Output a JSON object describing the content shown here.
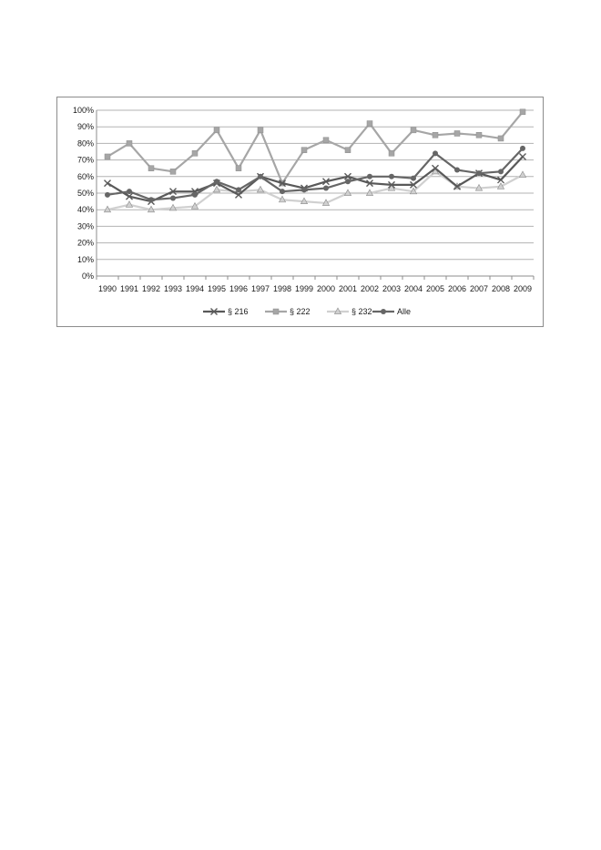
{
  "chart_data": {
    "type": "line",
    "title": "",
    "xlabel": "",
    "ylabel": "",
    "x": [
      "1990",
      "1991",
      "1992",
      "1993",
      "1994",
      "1995",
      "1996",
      "1997",
      "1998",
      "1999",
      "2000",
      "2001",
      "2002",
      "2003",
      "2004",
      "2005",
      "2006",
      "2007",
      "2008",
      "2009"
    ],
    "y_ticks": [
      "0%",
      "10%",
      "20%",
      "30%",
      "40%",
      "50%",
      "60%",
      "70%",
      "80%",
      "90%",
      "100%"
    ],
    "ylim": [
      0,
      100
    ],
    "grid": true,
    "legend_position": "bottom",
    "series": [
      {
        "name": "§ 216",
        "marker": "x",
        "color": "#595959",
        "values": [
          56,
          48,
          45,
          51,
          51,
          56,
          49,
          60,
          56,
          53,
          57,
          60,
          56,
          55,
          55,
          65,
          54,
          62,
          58,
          72
        ]
      },
      {
        "name": "§ 222",
        "marker": "square",
        "color": "#a6a6a6",
        "values": [
          72,
          80,
          65,
          63,
          74,
          88,
          65,
          88,
          56,
          76,
          82,
          76,
          92,
          74,
          88,
          85,
          86,
          85,
          83,
          99
        ]
      },
      {
        "name": "§ 232",
        "marker": "triangle",
        "color": "#d0d0d0",
        "values": [
          40,
          43,
          40,
          41,
          42,
          52,
          51,
          52,
          46,
          45,
          44,
          50,
          50,
          53,
          51,
          63,
          54,
          53,
          54,
          61
        ]
      },
      {
        "name": "Alle",
        "marker": "circle",
        "color": "#666666",
        "values": [
          49,
          51,
          46,
          47,
          49,
          57,
          52,
          60,
          51,
          52,
          53,
          57,
          60,
          60,
          59,
          74,
          64,
          62,
          63,
          77
        ]
      }
    ]
  }
}
